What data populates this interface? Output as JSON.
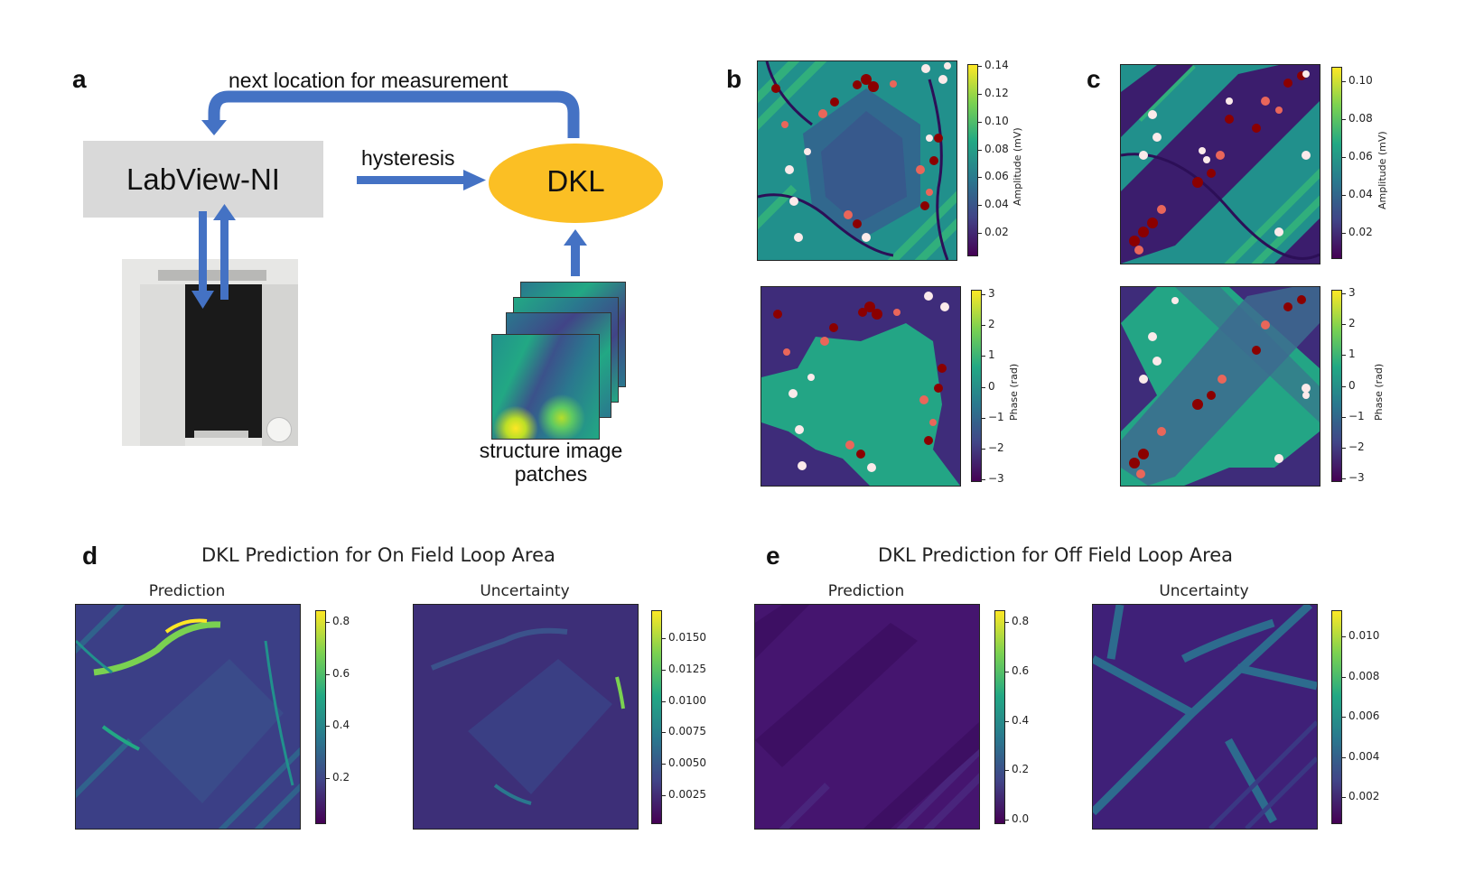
{
  "panel_letters": {
    "a": "a",
    "b": "b",
    "c": "c",
    "d": "d",
    "e": "e"
  },
  "diagram": {
    "loop_label": "next location for measurement",
    "instrument_box": "LabView-NI",
    "hysteresis_label": "hysteresis",
    "model_label": "DKL",
    "patches_label_line1": "structure image",
    "patches_label_line2": "patches"
  },
  "colors": {
    "arrow": "#4472c4",
    "instrument_box": "#d9d9d9",
    "dkl_ellipse": "#fbbf24",
    "marker_dark": "#8b0000",
    "marker_light": "#f4cccc"
  },
  "panel_b": {
    "amplitude_colorbar": {
      "title": "Amplitude (mV)",
      "ticks": [
        "0.14",
        "0.12",
        "0.10",
        "0.08",
        "0.06",
        "0.04",
        "0.02"
      ]
    },
    "phase_colorbar": {
      "title": "Phase (rad)",
      "ticks": [
        "3",
        "2",
        "1",
        "0",
        "−1",
        "−2",
        "−3"
      ]
    }
  },
  "panel_c": {
    "amplitude_colorbar": {
      "title": "Amplitude (mV)",
      "ticks": [
        "0.10",
        "0.08",
        "0.06",
        "0.04",
        "0.02"
      ]
    },
    "phase_colorbar": {
      "title": "Phase (rad)",
      "ticks": [
        "3",
        "2",
        "1",
        "0",
        "−1",
        "−2",
        "−3"
      ]
    }
  },
  "panel_d": {
    "title": "DKL Prediction for On Field Loop Area",
    "prediction": {
      "title": "Prediction",
      "ticks": [
        "0.8",
        "0.6",
        "0.4",
        "0.2"
      ]
    },
    "uncertainty": {
      "title": "Uncertainty",
      "ticks": [
        "0.0150",
        "0.0125",
        "0.0100",
        "0.0075",
        "0.0050",
        "0.0025"
      ]
    }
  },
  "panel_e": {
    "title": "DKL Prediction for Off Field Loop Area",
    "prediction": {
      "title": "Prediction",
      "ticks": [
        "0.8",
        "0.6",
        "0.4",
        "0.2",
        "0.0"
      ]
    },
    "uncertainty": {
      "title": "Uncertainty",
      "ticks": [
        "0.010",
        "0.008",
        "0.006",
        "0.004",
        "0.002"
      ]
    }
  }
}
